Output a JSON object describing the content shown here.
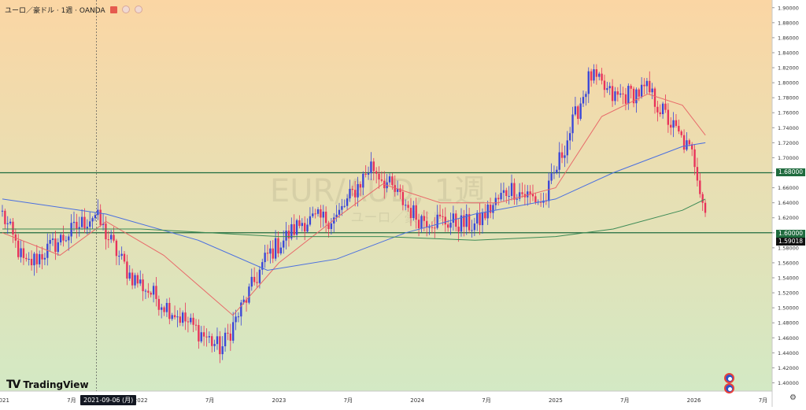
{
  "header": {
    "title": "ユーロ／豪ドル · 1週 · OANDA"
  },
  "brand": "TradingView",
  "crosshair_date": "2021-09-06 (月)",
  "watermark": "EUR/AUD, 1週",
  "watermark_sub": "ユーロ／豪ドル",
  "price_labels": {
    "level_upper": "1.68000",
    "level_lower": "1.60000",
    "last": "1.59018"
  },
  "colors": {
    "bull": "#3a46d8",
    "bear": "#e8325a",
    "level": "#1f6b3e",
    "ma_fast": "#e86a6a",
    "ma_mid": "#4a6fe0",
    "ma_slow": "#3c8a55",
    "bg_top": "#fbd6a4",
    "bg_bottom": "#d3e9c4"
  },
  "chart_data": {
    "type": "candlestick",
    "title": "ユーロ／豪ドル · 1週 · OANDA",
    "ylim": [
      1.39,
      1.905
    ],
    "yticks": [
      "1.90000",
      "1.88000",
      "1.86000",
      "1.84000",
      "1.82000",
      "1.80000",
      "1.78000",
      "1.76000",
      "1.74000",
      "1.72000",
      "1.70000",
      "1.68000",
      "1.66000",
      "1.64000",
      "1.62000",
      "1.60000",
      "1.58000",
      "1.56000",
      "1.54000",
      "1.52000",
      "1.50000",
      "1.48000",
      "1.46000",
      "1.44000",
      "1.42000",
      "1.40000"
    ],
    "xticks": [
      "2021",
      "7月",
      "2022",
      "7月",
      "2023",
      "7月",
      "2024",
      "7月",
      "2025",
      "7月",
      "2026",
      "7月"
    ],
    "horizontal_levels": [
      1.68,
      1.6
    ],
    "key_points": [
      {
        "date": "2021-01",
        "close": 1.625
      },
      {
        "date": "2021-03",
        "close": 1.555
      },
      {
        "date": "2021-09",
        "close": 1.625
      },
      {
        "date": "2021-12",
        "close": 1.545
      },
      {
        "date": "2022-03",
        "close": 1.505
      },
      {
        "date": "2022-08",
        "close": 1.445
      },
      {
        "date": "2022-12",
        "close": 1.57
      },
      {
        "date": "2023-03",
        "close": 1.615
      },
      {
        "date": "2023-06",
        "close": 1.62
      },
      {
        "date": "2023-09",
        "close": 1.69
      },
      {
        "date": "2024-01",
        "close": 1.62
      },
      {
        "date": "2024-06",
        "close": 1.61
      },
      {
        "date": "2024-09",
        "close": 1.66
      },
      {
        "date": "2024-12",
        "close": 1.64
      },
      {
        "date": "2025-04",
        "close": 1.81
      },
      {
        "date": "2025-06",
        "close": 1.78
      },
      {
        "date": "2025-09",
        "close": 1.79
      },
      {
        "date": "2026-01",
        "close": 1.7
      },
      {
        "date": "2026-02",
        "close": 1.63
      }
    ],
    "series": [
      {
        "kind": "moving_average",
        "color": "#e86a6a",
        "values": [
          {
            "date": "2021-01",
            "v": 1.6
          },
          {
            "date": "2021-06",
            "v": 1.57
          },
          {
            "date": "2021-10",
            "v": 1.615
          },
          {
            "date": "2022-03",
            "v": 1.57
          },
          {
            "date": "2022-09",
            "v": 1.49
          },
          {
            "date": "2023-01",
            "v": 1.56
          },
          {
            "date": "2023-06",
            "v": 1.62
          },
          {
            "date": "2023-10",
            "v": 1.665
          },
          {
            "date": "2024-03",
            "v": 1.64
          },
          {
            "date": "2024-08",
            "v": 1.64
          },
          {
            "date": "2025-01",
            "v": 1.66
          },
          {
            "date": "2025-05",
            "v": 1.755
          },
          {
            "date": "2025-09",
            "v": 1.785
          },
          {
            "date": "2025-12",
            "v": 1.77
          },
          {
            "date": "2026-02",
            "v": 1.73
          }
        ]
      },
      {
        "kind": "moving_average",
        "color": "#4a6fe0",
        "values": [
          {
            "date": "2021-01",
            "v": 1.645
          },
          {
            "date": "2021-10",
            "v": 1.625
          },
          {
            "date": "2022-06",
            "v": 1.59
          },
          {
            "date": "2022-12",
            "v": 1.55
          },
          {
            "date": "2023-06",
            "v": 1.565
          },
          {
            "date": "2023-12",
            "v": 1.6
          },
          {
            "date": "2024-06",
            "v": 1.625
          },
          {
            "date": "2025-01",
            "v": 1.645
          },
          {
            "date": "2025-06",
            "v": 1.68
          },
          {
            "date": "2025-12",
            "v": 1.715
          },
          {
            "date": "2026-02",
            "v": 1.72
          }
        ]
      },
      {
        "kind": "moving_average",
        "color": "#3c8a55",
        "values": [
          {
            "date": "2021-01",
            "v": 1.605
          },
          {
            "date": "2022-01",
            "v": 1.605
          },
          {
            "date": "2023-01",
            "v": 1.595
          },
          {
            "date": "2023-10",
            "v": 1.595
          },
          {
            "date": "2024-06",
            "v": 1.59
          },
          {
            "date": "2025-01",
            "v": 1.595
          },
          {
            "date": "2025-06",
            "v": 1.605
          },
          {
            "date": "2025-12",
            "v": 1.63
          },
          {
            "date": "2026-02",
            "v": 1.645
          }
        ]
      }
    ]
  }
}
